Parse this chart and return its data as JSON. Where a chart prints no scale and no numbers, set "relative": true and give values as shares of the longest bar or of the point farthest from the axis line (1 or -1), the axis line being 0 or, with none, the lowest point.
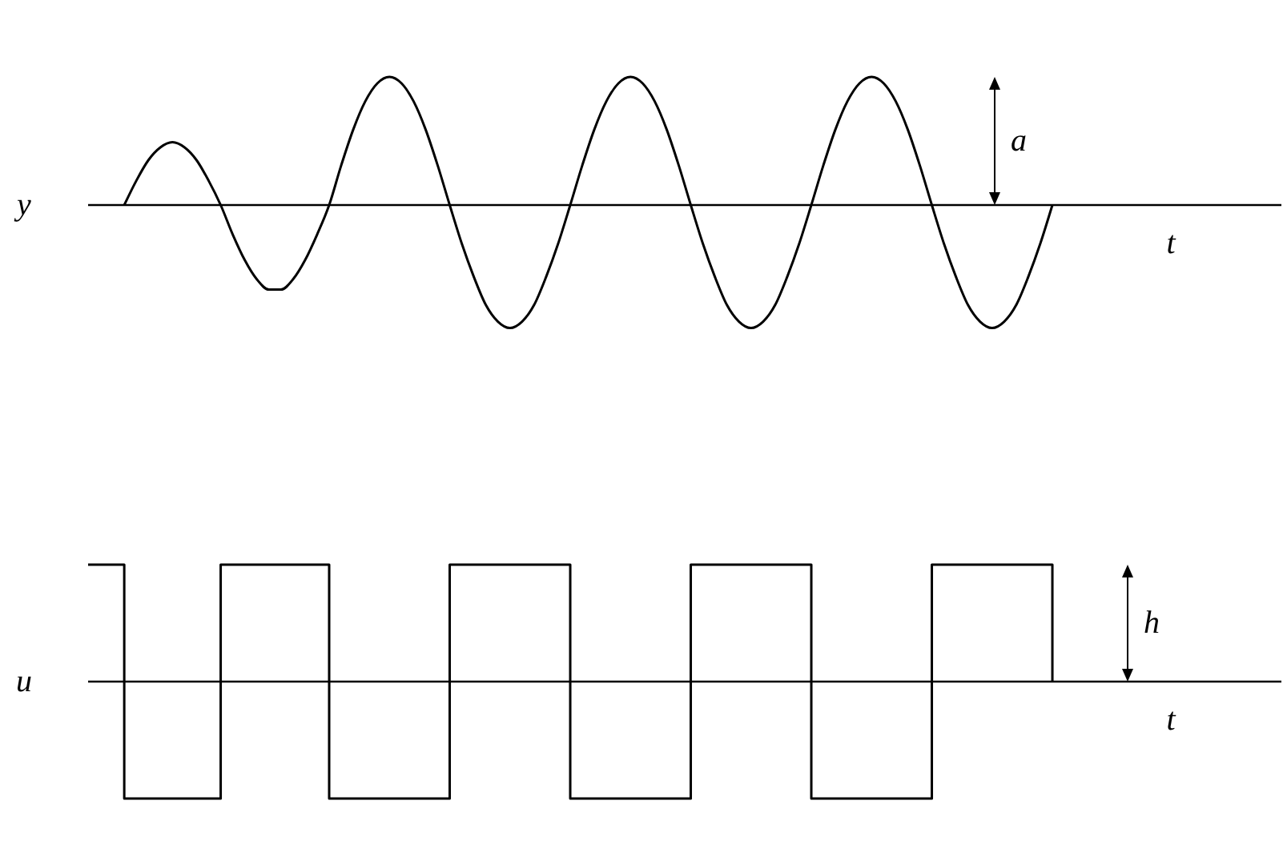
{
  "chart_data": [
    {
      "type": "line",
      "ylabel": "y",
      "xlabel": "t",
      "relative": true,
      "legend": false,
      "grid": false,
      "marker": "none",
      "categories": [
        null,
        null,
        null,
        null,
        null,
        null,
        null,
        null,
        null,
        null,
        null,
        null,
        null,
        null,
        null,
        null,
        null,
        null,
        null,
        null,
        null,
        null,
        null,
        null,
        null,
        null,
        null,
        null,
        null,
        null,
        null,
        null,
        null,
        null,
        null,
        null,
        null,
        null,
        null,
        null,
        null,
        null,
        null,
        null,
        null,
        null,
        null,
        null,
        null,
        null,
        null,
        null,
        null,
        null,
        null,
        null,
        null,
        null,
        null,
        null,
        null,
        null,
        null,
        null,
        null,
        null,
        null,
        null,
        null,
        null,
        null,
        null,
        null,
        null,
        null,
        null,
        null,
        null,
        null,
        null,
        null,
        null,
        null,
        null,
        null,
        null,
        null,
        null,
        null,
        null,
        null,
        null,
        null,
        null,
        null,
        null,
        null,
        null,
        null,
        null
      ],
      "series": [
        {
          "color": "#000000",
          "values": [
            null,
            null,
            null,
            0,
            0.19,
            0.35,
            0.45,
            0.49,
            0.45,
            0.35,
            0.19,
            0,
            -0.23,
            -0.43,
            -0.58,
            -0.66,
            -0.66,
            -0.58,
            -0.43,
            -0.23,
            0,
            0.31,
            0.59,
            0.81,
            0.95,
            1,
            0.95,
            0.81,
            0.59,
            0.31,
            0,
            -0.3,
            -0.56,
            -0.78,
            -0.91,
            -0.96,
            -0.91,
            -0.78,
            -0.56,
            -0.3,
            0,
            0.31,
            0.59,
            0.81,
            0.95,
            1,
            0.95,
            0.81,
            0.59,
            0.31,
            0,
            -0.3,
            -0.56,
            -0.78,
            -0.91,
            -0.96,
            -0.91,
            -0.78,
            -0.56,
            -0.3,
            0,
            0.31,
            0.59,
            0.81,
            0.95,
            1,
            0.95,
            0.81,
            0.59,
            0.31,
            0,
            -0.3,
            -0.56,
            -0.78,
            -0.91,
            -0.96,
            -0.91,
            -0.78,
            -0.56,
            -0.3,
            0,
            null,
            null,
            null,
            null,
            null,
            null,
            null,
            null,
            null,
            null,
            null,
            null,
            null,
            null,
            null,
            null,
            null,
            null,
            null
          ]
        }
      ],
      "annotations": [
        "a"
      ]
    },
    {
      "type": "step",
      "ylabel": "u",
      "xlabel": "t",
      "relative": true,
      "legend": false,
      "grid": false,
      "marker": "none",
      "categories": [
        null,
        null,
        null,
        null,
        null,
        null,
        null,
        null,
        null,
        null,
        null,
        null,
        null,
        null,
        null,
        null,
        null,
        null,
        null,
        null,
        null,
        null,
        null,
        null,
        null,
        null,
        null,
        null,
        null,
        null,
        null,
        null,
        null,
        null,
        null,
        null,
        null,
        null,
        null,
        null,
        null,
        null,
        null,
        null,
        null,
        null,
        null,
        null,
        null,
        null,
        null,
        null,
        null,
        null,
        null,
        null,
        null,
        null,
        null,
        null,
        null,
        null,
        null,
        null,
        null,
        null,
        null,
        null,
        null,
        null,
        null,
        null,
        null,
        null,
        null,
        null,
        null,
        null,
        null,
        null,
        null,
        null,
        null,
        null,
        null,
        null,
        null,
        null,
        null,
        null,
        null,
        null,
        null,
        null,
        null,
        null,
        null,
        null,
        null,
        null
      ],
      "series": [
        {
          "color": "#000000",
          "values": [
            1,
            1,
            1,
            -1,
            -1,
            -1,
            -1,
            -1,
            -1,
            -1,
            -1,
            1,
            1,
            1,
            1,
            1,
            1,
            1,
            1,
            1,
            -1,
            -1,
            -1,
            -1,
            -1,
            -1,
            -1,
            -1,
            -1,
            -1,
            1,
            1,
            1,
            1,
            1,
            1,
            1,
            1,
            1,
            1,
            -1,
            -1,
            -1,
            -1,
            -1,
            -1,
            -1,
            -1,
            -1,
            -1,
            1,
            1,
            1,
            1,
            1,
            1,
            1,
            1,
            1,
            1,
            -1,
            -1,
            -1,
            -1,
            -1,
            -1,
            -1,
            -1,
            -1,
            -1,
            1,
            1,
            1,
            1,
            1,
            1,
            1,
            1,
            1,
            1,
            0,
            null,
            null,
            null,
            null,
            null,
            null,
            null,
            null,
            null,
            null,
            null,
            null,
            null,
            null,
            null,
            null,
            null,
            null,
            null
          ]
        }
      ],
      "annotations": [
        "h"
      ]
    }
  ]
}
